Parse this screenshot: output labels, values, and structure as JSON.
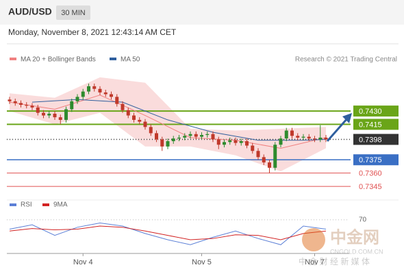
{
  "header": {
    "symbol": "AUD/USD",
    "timeframe": "30 MIN",
    "datetime": "Monday, November 8, 2021 12:43:14 AM CET",
    "credit": "Research © 2021 Trading Central"
  },
  "chart_data": {
    "type": "candlestick",
    "categories": [
      null,
      null,
      null,
      null,
      null,
      null,
      null,
      null,
      null,
      null,
      null,
      null,
      null,
      "Nov 4",
      null,
      null,
      null,
      null,
      null,
      null,
      null,
      null,
      null,
      null,
      null,
      null,
      null,
      null,
      null,
      null,
      null,
      null,
      null,
      null,
      "Nov 5",
      null,
      null,
      null,
      null,
      null,
      null,
      null,
      null,
      null,
      null,
      null,
      null,
      null,
      null,
      null,
      null,
      null,
      null,
      null,
      "Nov 7",
      null,
      null
    ],
    "open": [
      0.7443,
      0.7441,
      0.7439,
      0.7437,
      0.7436,
      0.7434,
      0.7428,
      0.7425,
      0.7427,
      0.7423,
      0.742,
      0.7432,
      0.7441,
      0.7446,
      0.7452,
      0.7458,
      0.7455,
      0.7451,
      0.7449,
      0.7446,
      0.7438,
      0.7431,
      0.7425,
      0.742,
      0.7418,
      0.7412,
      0.7405,
      0.7398,
      0.739,
      0.7396,
      0.7399,
      0.74,
      0.7402,
      0.7404,
      0.7401,
      0.7403,
      0.7404,
      0.7398,
      0.7392,
      0.7395,
      0.7397,
      0.7394,
      0.7396,
      0.7391,
      0.7385,
      0.7378,
      0.7372,
      0.7366,
      0.7392,
      0.7399,
      0.7408,
      0.7402,
      0.74,
      0.7401,
      0.7399,
      0.7398,
      0.74
    ],
    "high": [
      0.7446,
      0.7444,
      0.7442,
      0.744,
      0.7439,
      0.7437,
      0.7431,
      0.743,
      0.743,
      0.7426,
      0.7435,
      0.7444,
      0.7449,
      0.7455,
      0.7461,
      0.7461,
      0.7458,
      0.7454,
      0.7452,
      0.7449,
      0.7441,
      0.7434,
      0.7428,
      0.7423,
      0.7421,
      0.7415,
      0.7408,
      0.7401,
      0.7399,
      0.7402,
      0.7403,
      0.7405,
      0.7407,
      0.7407,
      0.7406,
      0.7407,
      0.7407,
      0.7401,
      0.7398,
      0.74,
      0.74,
      0.7399,
      0.7399,
      0.7394,
      0.7388,
      0.7381,
      0.7375,
      0.7395,
      0.7402,
      0.7411,
      0.7411,
      0.7405,
      0.7404,
      0.7404,
      0.7402,
      0.7414,
      0.7403
    ],
    "low": [
      0.7438,
      0.7436,
      0.7434,
      0.7433,
      0.7431,
      0.7425,
      0.7422,
      0.7422,
      0.742,
      0.7415,
      0.7417,
      0.7429,
      0.7438,
      0.7443,
      0.7449,
      0.7452,
      0.7448,
      0.7446,
      0.7443,
      0.7435,
      0.7428,
      0.7422,
      0.7417,
      0.7415,
      0.7409,
      0.7402,
      0.7395,
      0.7385,
      0.7387,
      0.7393,
      0.7396,
      0.7397,
      0.7399,
      0.7398,
      0.7398,
      0.74,
      0.7395,
      0.7387,
      0.7389,
      0.7392,
      0.7391,
      0.7391,
      0.7388,
      0.7382,
      0.7375,
      0.7369,
      0.736,
      0.7363,
      0.7389,
      0.7396,
      0.7399,
      0.7397,
      0.7397,
      0.7396,
      0.7395,
      0.7395,
      0.7395
    ],
    "close": [
      0.7441,
      0.7439,
      0.7437,
      0.7436,
      0.7434,
      0.7428,
      0.7425,
      0.7427,
      0.7423,
      0.742,
      0.7432,
      0.7441,
      0.7446,
      0.7452,
      0.7458,
      0.7455,
      0.7451,
      0.7449,
      0.7446,
      0.7438,
      0.7431,
      0.7425,
      0.742,
      0.7418,
      0.7412,
      0.7405,
      0.7398,
      0.739,
      0.7396,
      0.7399,
      0.74,
      0.7402,
      0.7404,
      0.7401,
      0.7403,
      0.7404,
      0.7398,
      0.7392,
      0.7395,
      0.7397,
      0.7394,
      0.7396,
      0.7391,
      0.7385,
      0.7378,
      0.7372,
      0.7366,
      0.7392,
      0.7399,
      0.7408,
      0.7402,
      0.74,
      0.7401,
      0.7399,
      0.7398,
      0.74,
      0.7398
    ],
    "up_color": "#2e8b2e",
    "down_color": "#c0392b",
    "ylim": [
      0.7335,
      0.7478
    ],
    "ma20": {
      "name": "MA 20 + Bollinger Bands",
      "color": "#f08080",
      "band_color": "#f9d3d3",
      "x": [
        0,
        8,
        16,
        24,
        32,
        40,
        48,
        56
      ],
      "values": [
        0.744,
        0.7432,
        0.7448,
        0.7425,
        0.74,
        0.7397,
        0.7388,
        0.74
      ],
      "upper": [
        0.745,
        0.7445,
        0.7468,
        0.7462,
        0.741,
        0.7408,
        0.741,
        0.7412
      ],
      "lower": [
        0.743,
        0.7415,
        0.7428,
        0.739,
        0.739,
        0.738,
        0.7362,
        0.7388
      ]
    },
    "ma50": {
      "name": "MA 50",
      "color": "#2f5f9e",
      "x": [
        4,
        12,
        20,
        28,
        36,
        44,
        52,
        56
      ],
      "values": [
        0.744,
        0.7443,
        0.744,
        0.742,
        0.7406,
        0.7397,
        0.7397,
        0.7398
      ]
    },
    "levels": [
      {
        "value": 0.743,
        "label": "0.7430",
        "color": "#6aa518",
        "style": "box"
      },
      {
        "value": 0.7415,
        "label": "0.7415",
        "color": "#6aa518",
        "style": "box"
      },
      {
        "value": 0.7398,
        "label": "0.7398",
        "color": "#333333",
        "style": "current"
      },
      {
        "value": 0.7375,
        "label": "0.7375",
        "color": "#3a6fc4",
        "style": "box"
      },
      {
        "value": 0.736,
        "label": "0.7360",
        "color": "#e05050",
        "style": "text"
      },
      {
        "value": 0.7345,
        "label": "0.7345",
        "color": "#e05050",
        "style": "text"
      }
    ],
    "rsi": {
      "ylim": [
        16,
        82
      ],
      "yticks": [
        70
      ],
      "x": [
        0,
        4,
        8,
        12,
        16,
        20,
        24,
        28,
        32,
        36,
        40,
        44,
        48,
        52,
        56
      ],
      "series": [
        {
          "name": "RSI",
          "color": "#5b7fd6",
          "values": [
            55,
            62,
            45,
            58,
            65,
            60,
            48,
            38,
            30,
            42,
            52,
            40,
            30,
            60,
            55
          ]
        },
        {
          "name": "9MA",
          "color": "#d22222",
          "values": [
            52,
            56,
            54,
            55,
            60,
            58,
            52,
            45,
            38,
            40,
            46,
            45,
            38,
            48,
            52
          ]
        }
      ]
    }
  },
  "watermark": {
    "brand": "中金网",
    "site": "CNGOLD.COM.CN",
    "slogan": "中 金 财 经 新 媒 体"
  }
}
